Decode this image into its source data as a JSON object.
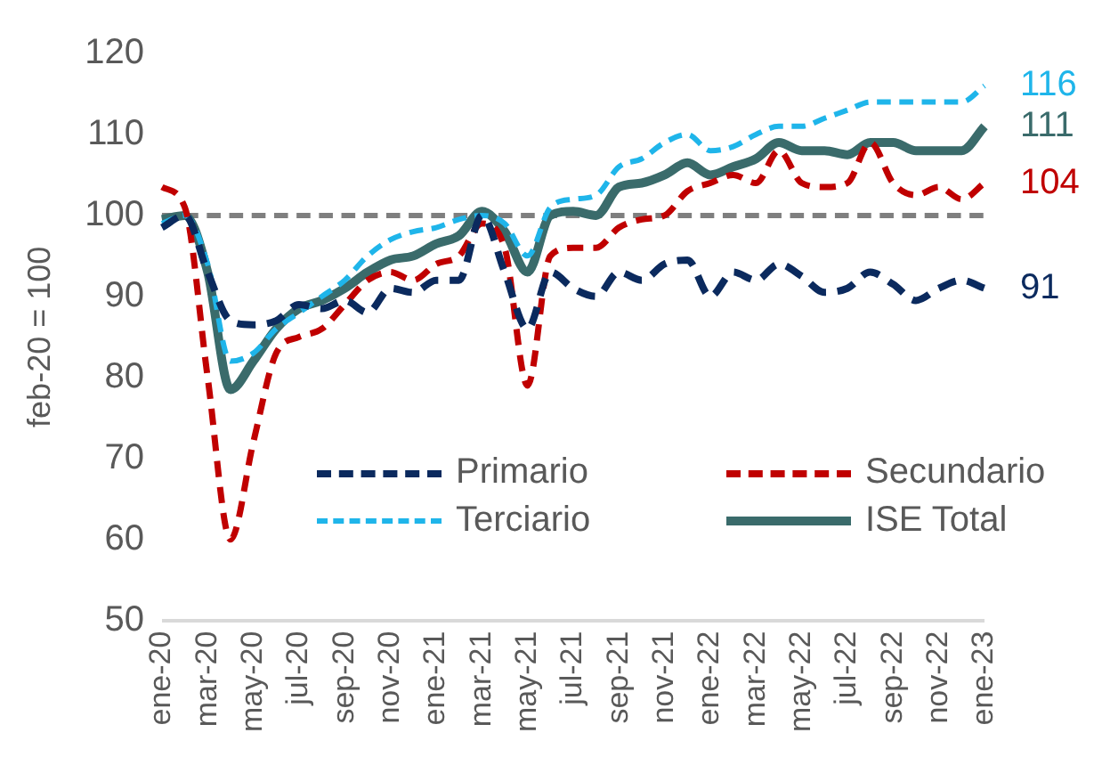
{
  "chart_data": {
    "type": "line",
    "ylabel": "feb-20 = 100",
    "categories": [
      "ene-20",
      null,
      "mar-20",
      null,
      "may-20",
      null,
      "jul-20",
      null,
      "sep-20",
      null,
      "nov-20",
      null,
      "ene-21",
      null,
      "mar-21",
      null,
      "may-21",
      null,
      "jul-21",
      null,
      "sep-21",
      null,
      "nov-21",
      null,
      "ene-22",
      null,
      "mar-22",
      null,
      "may-22",
      null,
      "jul-22",
      null,
      "sep-22",
      null,
      "nov-22",
      null,
      "ene-23"
    ],
    "series": [
      {
        "name": "Primario",
        "color": "#0b2a5e",
        "line_style": "dashed",
        "values": [
          98.5,
          100,
          93,
          87,
          86.5,
          87,
          89,
          88.5,
          89.5,
          88,
          91,
          90.5,
          92,
          92,
          100,
          93,
          86,
          93,
          91,
          90,
          93,
          92,
          94,
          94.5,
          90,
          93,
          92,
          94,
          92.5,
          90.5,
          91,
          93,
          91.5,
          89.5,
          91,
          92,
          91
        ]
      },
      {
        "name": "Secundario",
        "color": "#c00000",
        "line_style": "dashed",
        "values": [
          103.5,
          101,
          80,
          60,
          72,
          83,
          85,
          86,
          89,
          92,
          93,
          92,
          94,
          95,
          99,
          96,
          79,
          95,
          96,
          96,
          98.5,
          99.5,
          100,
          103,
          104,
          105,
          104,
          108,
          104,
          103.5,
          104,
          109,
          104,
          102.5,
          103.5,
          102,
          104
        ]
      },
      {
        "name": "Terciario",
        "color": "#1fb5ea",
        "line_style": "dashed",
        "values": [
          99,
          100,
          94,
          82,
          83,
          86,
          88,
          90,
          92,
          95,
          97,
          98,
          98.5,
          99.5,
          100,
          99,
          95,
          101,
          102,
          102.5,
          106,
          107,
          109,
          110,
          108,
          108.5,
          110,
          111,
          111,
          112,
          113,
          114,
          114,
          114,
          114,
          114,
          116
        ]
      },
      {
        "name": "ISE Total",
        "color": "#3a6b6b",
        "line_style": "solid",
        "values": [
          99.5,
          100,
          93,
          78.5,
          82,
          86,
          88.5,
          89.5,
          91,
          93,
          94.5,
          95,
          96.5,
          97.5,
          100.5,
          98,
          93,
          100,
          100.5,
          100,
          103.5,
          104,
          105,
          106.5,
          105,
          106,
          107,
          109,
          108,
          108,
          107.5,
          109,
          109,
          108,
          108,
          108,
          111
        ]
      }
    ],
    "ylim": [
      50,
      120
    ],
    "yticks": [
      50,
      60,
      70,
      80,
      90,
      100,
      110,
      120
    ],
    "ref_lines": [
      {
        "axis": "y",
        "value": 100,
        "color": "#7f7f7f",
        "line_style": "dashed"
      }
    ],
    "annotations": [
      {
        "text": "116",
        "x": "ene-23",
        "y": 116
      },
      {
        "text": "111",
        "x": "ene-23",
        "y": 111
      },
      {
        "text": "104",
        "x": "ene-23",
        "y": 104
      },
      {
        "text": "91",
        "x": "ene-23",
        "y": 91
      }
    ],
    "grid": false,
    "legend": "bottom",
    "marker": "none"
  }
}
